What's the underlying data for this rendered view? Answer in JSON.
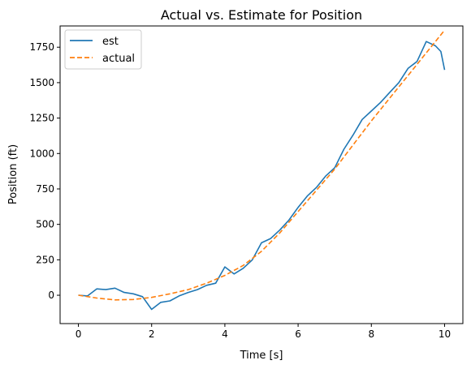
{
  "chart_data": {
    "type": "line",
    "title": "Actual vs. Estimate for Position",
    "xlabel": "Time [s]",
    "ylabel": "Position (ft)",
    "xlim": [
      -0.5,
      10.5
    ],
    "ylim": [
      -200,
      1900
    ],
    "xticks": [
      0,
      2,
      4,
      6,
      8,
      10
    ],
    "yticks": [
      0,
      250,
      500,
      750,
      1000,
      1250,
      1500,
      1750
    ],
    "grid": false,
    "legend": {
      "position": "top-left",
      "entries": [
        "est",
        "actual"
      ]
    },
    "series": [
      {
        "name": "est",
        "color": "#1f77b4",
        "style": "solid",
        "x": [
          0,
          0.25,
          0.5,
          0.75,
          1.0,
          1.25,
          1.5,
          1.75,
          2.0,
          2.25,
          2.5,
          2.75,
          3.0,
          3.25,
          3.5,
          3.75,
          4.0,
          4.25,
          4.5,
          4.75,
          5.0,
          5.25,
          5.5,
          5.75,
          6.0,
          6.25,
          6.5,
          6.75,
          7.0,
          7.25,
          7.5,
          7.75,
          8.0,
          8.25,
          8.5,
          8.75,
          9.0,
          9.25,
          9.5,
          9.75,
          9.9,
          10.0
        ],
        "y": [
          0,
          -5,
          45,
          40,
          50,
          20,
          10,
          -10,
          -100,
          -50,
          -40,
          -5,
          20,
          40,
          70,
          85,
          200,
          150,
          190,
          250,
          370,
          400,
          460,
          530,
          620,
          700,
          760,
          840,
          900,
          1030,
          1130,
          1240,
          1300,
          1360,
          1430,
          1500,
          1600,
          1650,
          1790,
          1760,
          1720,
          1590
        ]
      },
      {
        "name": "actual",
        "color": "#ff7f0e",
        "style": "dashed",
        "x": [
          0,
          0.5,
          1.0,
          1.5,
          2.0,
          2.5,
          3.0,
          3.5,
          4.0,
          4.5,
          5.0,
          5.5,
          6.0,
          6.5,
          7.0,
          7.5,
          8.0,
          8.5,
          9.0,
          9.5,
          10.0
        ],
        "y": [
          0,
          -20,
          -33,
          -30,
          -15,
          10,
          40,
          85,
          140,
          210,
          310,
          440,
          590,
          740,
          890,
          1060,
          1230,
          1390,
          1550,
          1710,
          1870
        ]
      }
    ]
  }
}
